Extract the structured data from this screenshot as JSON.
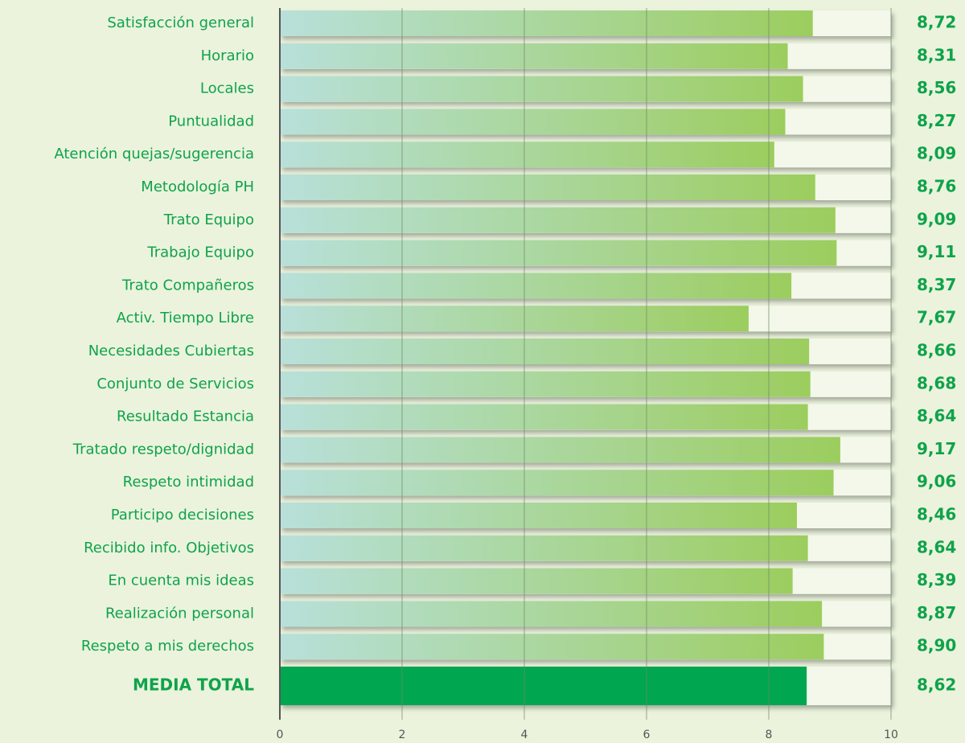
{
  "chart_data": {
    "type": "bar",
    "orientation": "horizontal",
    "categories": [
      "Satisfacción general",
      "Horario",
      "Locales",
      "Puntualidad",
      "Atención quejas/sugerencia",
      "Metodología PH",
      "Trato Equipo",
      "Trabajo Equipo",
      "Trato Compañeros",
      "Activ. Tiempo Libre",
      "Necesidades Cubiertas",
      "Conjunto de Servicios",
      "Resultado Estancia",
      "Tratado respeto/dignidad",
      "Respeto intimidad",
      "Participo decisiones",
      "Recibido info. Objetivos",
      "En cuenta mis ideas",
      "Realización personal",
      "Respeto a mis derechos"
    ],
    "values": [
      8.72,
      8.31,
      8.56,
      8.27,
      8.09,
      8.76,
      9.09,
      9.11,
      8.37,
      7.67,
      8.66,
      8.68,
      8.64,
      9.17,
      9.06,
      8.46,
      8.64,
      8.39,
      8.87,
      8.9
    ],
    "value_labels": [
      "8,72",
      "8,31",
      "8,56",
      "8,27",
      "8,09",
      "8,76",
      "9,09",
      "9,11",
      "8,37",
      "7,67",
      "8,66",
      "8,68",
      "8,64",
      "9,17",
      "9,06",
      "8,46",
      "8,64",
      "8,39",
      "8,87",
      "8,90"
    ],
    "gradient": [
      "#b8e0da",
      "#9ccd5e"
    ],
    "total": {
      "label": "MEDIA TOTAL",
      "value": 8.62,
      "value_label": "8,62",
      "color": "#00a650"
    },
    "xlim": [
      0,
      10
    ],
    "xticks": [
      0,
      2,
      4,
      6,
      8,
      10
    ],
    "grid": true
  }
}
